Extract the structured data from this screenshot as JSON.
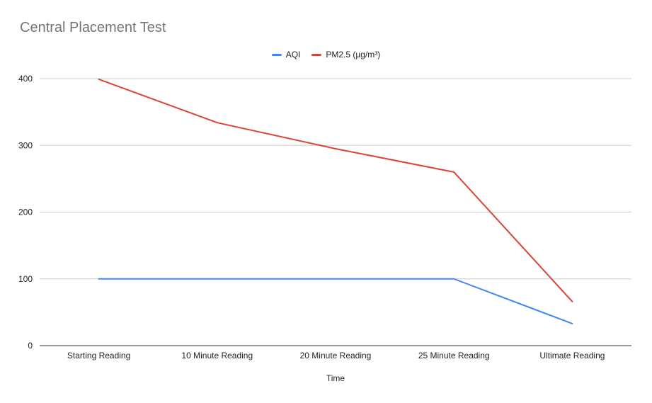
{
  "chart_data": {
    "type": "line",
    "title": "Central Placement Test",
    "xlabel": "Time",
    "ylabel": "",
    "categories": [
      "Starting Reading",
      "10 Minute Reading",
      "20 Minute Reading",
      "25 Minute Reading",
      "Ultimate Reading"
    ],
    "ylim": [
      0,
      400
    ],
    "yticks": [
      "0",
      "100",
      "200",
      "300",
      "400"
    ],
    "grid": true,
    "legend_position": "top",
    "series": [
      {
        "name": "AQI",
        "color": "#4285f4",
        "values": [
          100,
          100,
          100,
          100,
          33
        ]
      },
      {
        "name": "PM2.5 (µg/m³)",
        "color": "#db4437",
        "values": [
          399,
          334,
          295,
          260,
          66
        ]
      }
    ]
  }
}
